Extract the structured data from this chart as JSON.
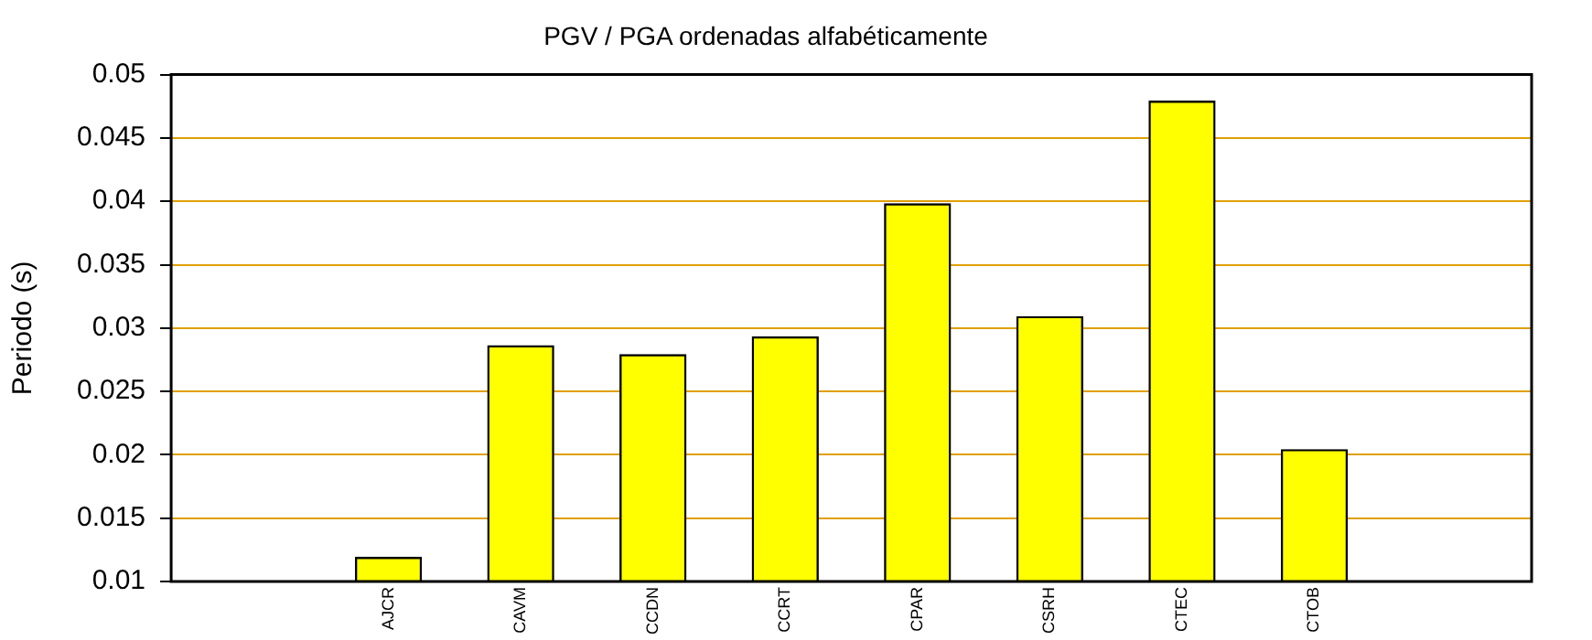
{
  "chart_data": {
    "type": "bar",
    "title": "PGV / PGA ordenadas alfabéticamente",
    "ylabel": "Periodo (s)",
    "categories": [
      "AJCR",
      "CAVM",
      "CCDN",
      "CCRT",
      "CPAR",
      "CSRH",
      "CTEC",
      "CTOB"
    ],
    "values": [
      0.0119,
      0.0286,
      0.0279,
      0.0293,
      0.0398,
      0.0309,
      0.0479,
      0.0204
    ],
    "color": "#ffff00",
    "ylim": [
      0.01,
      0.05
    ],
    "yticks": [
      0.01,
      0.015,
      0.02,
      0.025,
      0.03,
      0.035,
      0.04,
      0.045,
      0.05
    ],
    "grid": "y",
    "legend": false
  }
}
